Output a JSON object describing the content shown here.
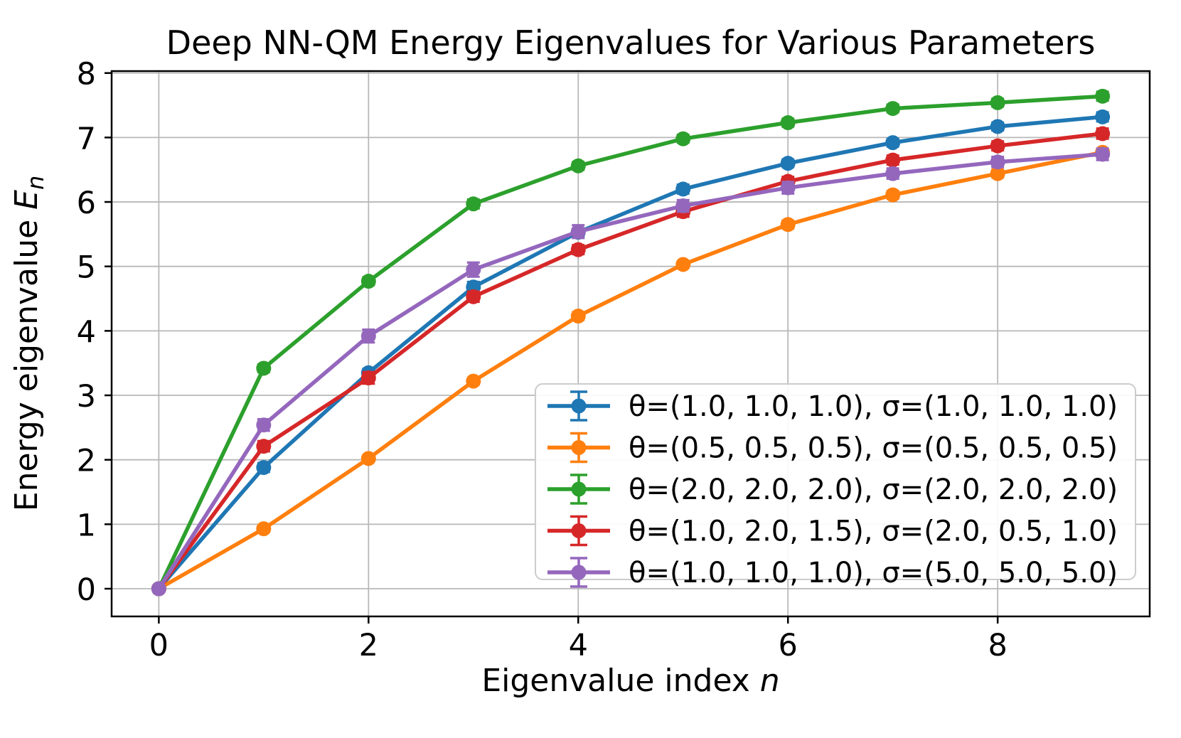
{
  "figure": {
    "background": "#ffffff",
    "spine_color": "#000000",
    "grid_color": "#b8b8b8",
    "legend_border_color": "#cccccc",
    "legend_background": "#ffffff"
  },
  "chart_data": {
    "type": "line",
    "title": "Deep NN-QM Energy Eigenvalues for Various Parameters",
    "xlabel": {
      "text": "Eigenvalue index ",
      "math": "n"
    },
    "ylabel": {
      "text": "Energy eigenvalue ",
      "math": "E",
      "sub": "n"
    },
    "x": [
      0,
      1,
      2,
      3,
      4,
      5,
      6,
      7,
      8,
      9
    ],
    "x_ticks": [
      0,
      2,
      4,
      6,
      8
    ],
    "y_ticks": [
      0,
      1,
      2,
      3,
      4,
      5,
      6,
      7,
      8
    ],
    "xlim": [
      -0.45,
      9.45
    ],
    "ylim": [
      -0.43,
      8.03
    ],
    "grid": true,
    "legend_position": "lower-right-inside",
    "series": [
      {
        "name": "θ=(1.0, 1.0, 1.0), σ=(1.0, 1.0, 1.0)",
        "color": "#1f77b4",
        "values": [
          0.0,
          1.88,
          3.35,
          4.68,
          5.53,
          6.2,
          6.6,
          6.92,
          7.17,
          7.32
        ],
        "yerr": [
          0.04,
          0.07,
          0.06,
          0.08,
          0.06,
          0.07,
          0.06,
          0.06,
          0.06,
          0.07
        ]
      },
      {
        "name": "θ=(0.5, 0.5, 0.5), σ=(0.5, 0.5, 0.5)",
        "color": "#ff7f0e",
        "values": [
          0.0,
          0.93,
          2.02,
          3.22,
          4.23,
          5.03,
          5.65,
          6.11,
          6.44,
          6.77
        ],
        "yerr": [
          0.04,
          0.05,
          0.05,
          0.05,
          0.06,
          0.05,
          0.06,
          0.06,
          0.06,
          0.05
        ]
      },
      {
        "name": "θ=(2.0, 2.0, 2.0), σ=(2.0, 2.0, 2.0)",
        "color": "#2ca02c",
        "values": [
          0.0,
          3.42,
          4.77,
          5.97,
          6.56,
          6.98,
          7.23,
          7.45,
          7.54,
          7.64
        ],
        "yerr": [
          0.04,
          0.06,
          0.06,
          0.07,
          0.06,
          0.06,
          0.06,
          0.06,
          0.06,
          0.07
        ]
      },
      {
        "name": "θ=(1.0, 2.0, 1.5), σ=(2.0, 0.5, 1.0)",
        "color": "#d62728",
        "values": [
          0.0,
          2.21,
          3.27,
          4.53,
          5.26,
          5.85,
          6.32,
          6.65,
          6.87,
          7.06
        ],
        "yerr": [
          0.04,
          0.08,
          0.09,
          0.08,
          0.07,
          0.08,
          0.07,
          0.07,
          0.07,
          0.08
        ]
      },
      {
        "name": "θ=(1.0, 1.0, 1.0), σ=(5.0, 5.0, 5.0)",
        "color": "#9467bd",
        "values": [
          0.0,
          2.54,
          3.92,
          4.95,
          5.54,
          5.94,
          6.22,
          6.44,
          6.62,
          6.74
        ],
        "yerr": [
          0.05,
          0.09,
          0.1,
          0.11,
          0.1,
          0.09,
          0.09,
          0.08,
          0.08,
          0.09
        ]
      }
    ]
  }
}
